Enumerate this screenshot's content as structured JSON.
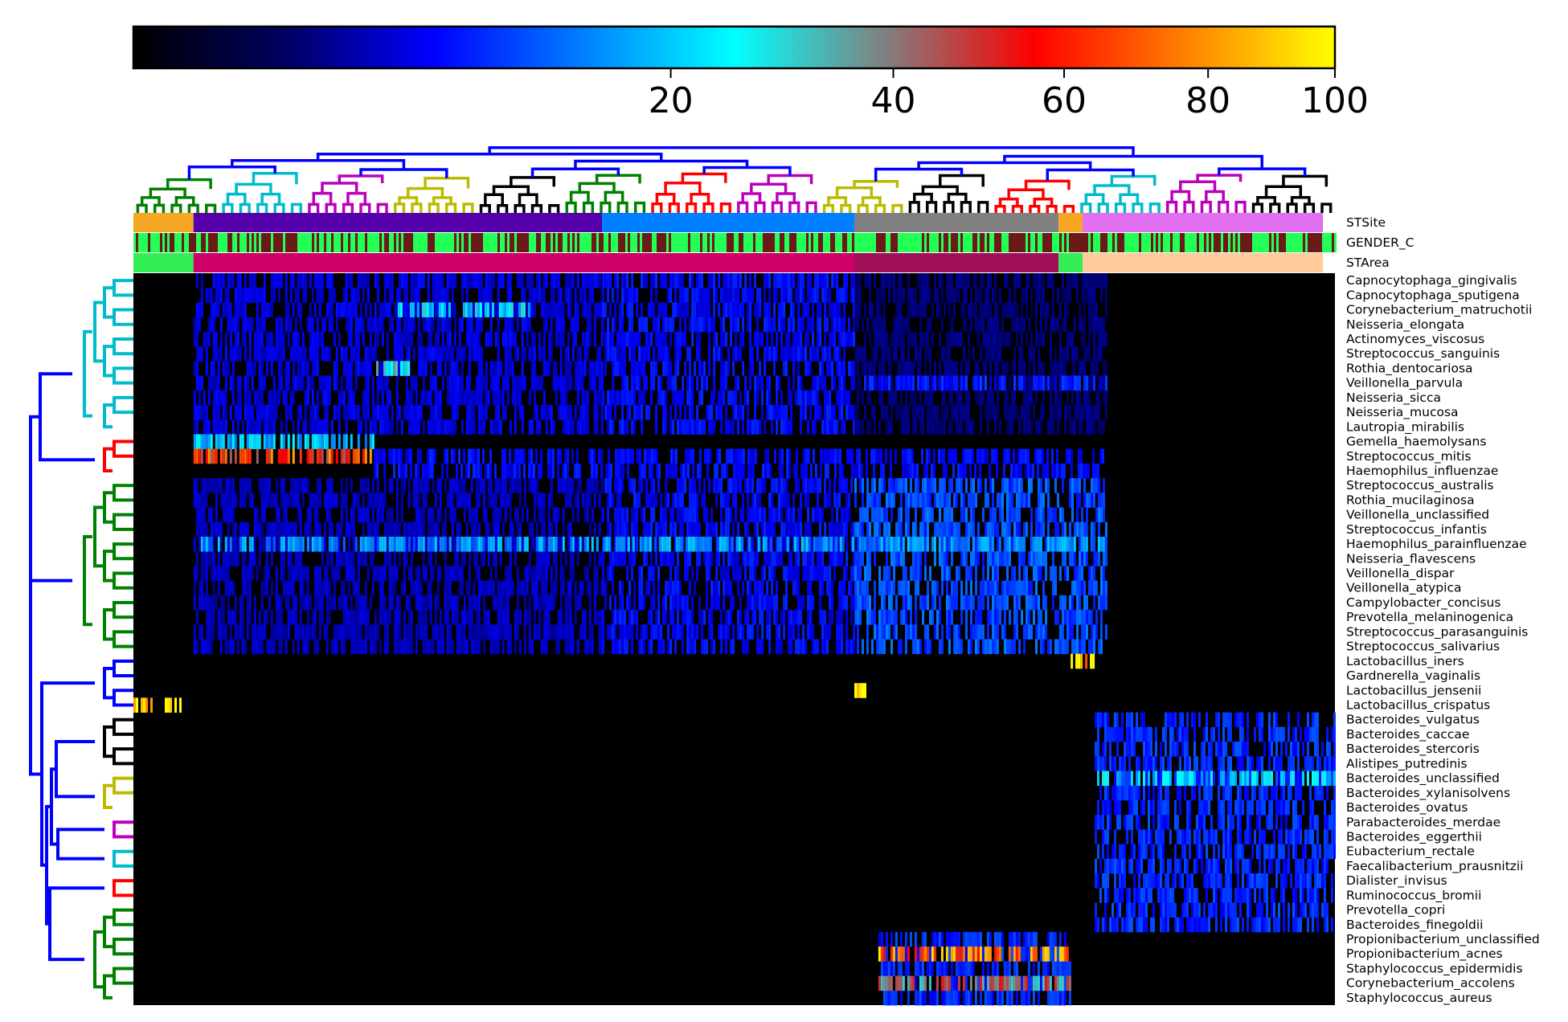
{
  "chart_data": {
    "type": "heatmap",
    "title": "",
    "xlabel": "",
    "ylabel": "",
    "colorbar": {
      "ticks": [
        20,
        40,
        60,
        80,
        100
      ],
      "range": [
        0,
        100
      ],
      "scale": "sqrt",
      "colormap": [
        "#000000",
        "#000060",
        "#0000ff",
        "#0080ff",
        "#00ffff",
        "#808080",
        "#ff0000",
        "#ff8000",
        "#ffff00"
      ]
    },
    "annotation_tracks": [
      "STSite",
      "GENDER_C",
      "STArea"
    ],
    "rows": [
      "Capnocytophaga_gingivalis",
      "Capnocytophaga_sputigena",
      "Corynebacterium_matruchotii",
      "Neisseria_elongata",
      "Actinomyces_viscosus",
      "Streptococcus_sanguinis",
      "Rothia_dentocariosa",
      "Veillonella_parvula",
      "Neisseria_sicca",
      "Neisseria_mucosa",
      "Lautropia_mirabilis",
      "Gemella_haemolysans",
      "Streptococcus_mitis",
      "Haemophilus_influenzae",
      "Streptococcus_australis",
      "Rothia_mucilaginosa",
      "Veillonella_unclassified",
      "Streptococcus_infantis",
      "Haemophilus_parainfluenzae",
      "Neisseria_flavescens",
      "Veillonella_dispar",
      "Veillonella_atypica",
      "Campylobacter_concisus",
      "Prevotella_melaninogenica",
      "Streptococcus_parasanguinis",
      "Streptococcus_salivarius",
      "Lactobacillus_iners",
      "Gardnerella_vaginalis",
      "Lactobacillus_jensenii",
      "Lactobacillus_crispatus",
      "Bacteroides_vulgatus",
      "Bacteroides_caccae",
      "Bacteroides_stercoris",
      "Alistipes_putredinis",
      "Bacteroides_unclassified",
      "Bacteroides_xylanisolvens",
      "Bacteroides_ovatus",
      "Parabacteroides_merdae",
      "Bacteroides_eggerthii",
      "Eubacterium_rectale",
      "Faecalibacterium_prausnitzii",
      "Dialister_invisus",
      "Ruminococcus_bromii",
      "Prevotella_copri",
      "Bacteroides_finegoldii",
      "Propionibacterium_unclassified",
      "Propionibacterium_acnes",
      "Staphylococcus_epidermidis",
      "Corynebacterium_accolens",
      "Staphylococcus_aureus"
    ],
    "column_groups": [
      {
        "id": "vaginal-1",
        "width": 0.05,
        "site_color": "#f5a623",
        "area_color": "#33ee55"
      },
      {
        "id": "oral-1",
        "width": 0.34,
        "site_color": "#5500aa",
        "area_color": "#cc0066"
      },
      {
        "id": "oral-2",
        "width": 0.21,
        "site_color": "#0080ff",
        "area_color": "#cc0066"
      },
      {
        "id": "oral-3",
        "width": 0.0,
        "site_color": "#0000ee",
        "area_color": "#cc0066"
      },
      {
        "id": "skin",
        "width": 0.17,
        "site_color": "#808080",
        "area_color": "#a0105a"
      },
      {
        "id": "vaginal-2",
        "width": 0.02,
        "site_color": "#f5a623",
        "area_color": "#33ee55"
      },
      {
        "id": "gut",
        "width": 0.2,
        "site_color": "#e070f0",
        "area_color": "#ffcc99"
      }
    ],
    "row_dendrogram_colors": [
      "#00bbcc",
      "#ff0000",
      "#008000",
      "#0000ff",
      "#000000",
      "#bbbb00",
      "#bb00bb",
      "#00bbcc",
      "#ff0000",
      "#008000"
    ],
    "column_dendrogram_colors": [
      "#008000",
      "#00bbcc",
      "#bb00bb",
      "#bbbb00",
      "#000000",
      "#008000",
      "#ff0000",
      "#bb00bb",
      "#bbbb00",
      "#000000",
      "#ff0000",
      "#00bbcc",
      "#bb00bb",
      "#000000"
    ],
    "blocks": [
      {
        "rows": [
          0,
          10
        ],
        "x": [
          0.05,
          0.39
        ],
        "level": 5
      },
      {
        "rows": [
          0,
          10
        ],
        "x": [
          0.39,
          0.6
        ],
        "level": 6
      },
      {
        "rows": [
          0,
          10
        ],
        "x": [
          0.6,
          0.81
        ],
        "level": 2
      },
      {
        "rows": [
          7,
          7
        ],
        "x": [
          0.6,
          0.81
        ],
        "level": 7
      },
      {
        "rows": [
          2,
          2
        ],
        "x": [
          0.22,
          0.33
        ],
        "level": 22
      },
      {
        "rows": [
          6,
          6
        ],
        "x": [
          0.2,
          0.23
        ],
        "level": 28
      },
      {
        "rows": [
          11,
          11
        ],
        "x": [
          0.05,
          0.2
        ],
        "level": 18
      },
      {
        "rows": [
          12,
          12
        ],
        "x": [
          0.05,
          0.2
        ],
        "level": 60
      },
      {
        "rows": [
          12,
          13
        ],
        "x": [
          0.2,
          0.81
        ],
        "level": 6
      },
      {
        "rows": [
          14,
          25
        ],
        "x": [
          0.05,
          0.39
        ],
        "level": 4
      },
      {
        "rows": [
          14,
          25
        ],
        "x": [
          0.39,
          0.6
        ],
        "level": 6
      },
      {
        "rows": [
          14,
          25
        ],
        "x": [
          0.6,
          0.81
        ],
        "level": 10
      },
      {
        "rows": [
          18,
          18
        ],
        "x": [
          0.05,
          0.81
        ],
        "level": 15
      },
      {
        "rows": [
          26,
          26
        ],
        "x": [
          0.78,
          0.8
        ],
        "level": 90
      },
      {
        "rows": [
          28,
          28
        ],
        "x": [
          0.6,
          0.61
        ],
        "level": 95
      },
      {
        "rows": [
          29,
          29
        ],
        "x": [
          0.0,
          0.04
        ],
        "level": 100
      },
      {
        "rows": [
          30,
          44
        ],
        "x": [
          0.8,
          1.0
        ],
        "level": 8
      },
      {
        "rows": [
          34,
          34
        ],
        "x": [
          0.8,
          1.0
        ],
        "level": 20
      },
      {
        "rows": [
          45,
          49
        ],
        "x": [
          0.62,
          0.78
        ],
        "level": 8
      },
      {
        "rows": [
          46,
          46
        ],
        "x": [
          0.62,
          0.78
        ],
        "level": 70
      },
      {
        "rows": [
          48,
          48
        ],
        "x": [
          0.62,
          0.78
        ],
        "level": 40
      }
    ]
  }
}
